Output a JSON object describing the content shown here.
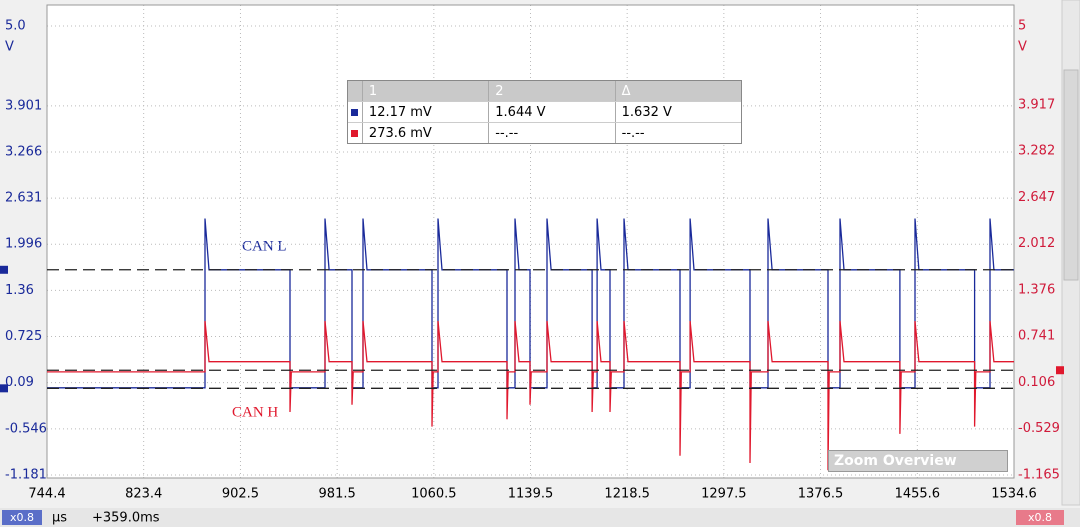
{
  "chart_data": {
    "type": "line",
    "xlim": [
      744.4,
      1534.6
    ],
    "xticks": [
      744.4,
      823.4,
      902.5,
      981.5,
      1060.5,
      1139.5,
      1218.5,
      1297.5,
      1376.5,
      1455.6,
      1534.6
    ],
    "ylim": [
      -1.181,
      5.0
    ],
    "yticks": [
      -1.181,
      -0.546,
      0.09,
      0.725,
      1.36,
      1.996,
      2.631,
      3.266,
      3.901,
      {
        "value": 5.0,
        "label": "5.0"
      }
    ],
    "y2lim": [
      -1.165,
      5
    ],
    "y2ticks": [
      -1.165,
      -0.529,
      0.106,
      0.741,
      1.376,
      2.012,
      2.647,
      3.282,
      3.917,
      5
    ],
    "ylabel": "V",
    "y2label": "V",
    "xlabel": "µs",
    "time_offset": "+359.0ms",
    "grid": true,
    "cursors": {
      "y": [
        0.01217,
        1.644
      ],
      "y2": [
        0.2736
      ]
    },
    "series": [
      {
        "name": "CAN L",
        "color": "#1a2a9a",
        "axis": "y",
        "x": [
          744.4,
          873.5,
          873.5,
          876.8,
          943.0,
          943.0,
          971.6,
          971.6,
          974.9,
          993.6,
          993.6,
          1002.6,
          1002.6,
          1005.9,
          1059.0,
          1059.0,
          1063.9,
          1063.9,
          1067.2,
          1120.3,
          1120.3,
          1126.8,
          1126.8,
          1130.1,
          1139.1,
          1139.1,
          1153.0,
          1153.0,
          1156.3,
          1189.8,
          1189.8,
          1193.9,
          1193.9,
          1197.1,
          1204.5,
          1204.5,
          1215.9,
          1215.9,
          1219.2,
          1261.7,
          1261.7,
          1269.9,
          1269.9,
          1273.1,
          1318.9,
          1318.9,
          1333.6,
          1333.6,
          1336.9,
          1382.6,
          1382.6,
          1392.4,
          1392.4,
          1395.7,
          1441.4,
          1441.4,
          1453.7,
          1453.7,
          1456.9,
          1502.4,
          1502.4,
          1515.0,
          1515.0,
          1518.2,
          1534.6
        ],
        "values": [
          0.02,
          0.02,
          2.35,
          1.644,
          1.644,
          0.02,
          0.02,
          2.35,
          1.644,
          1.644,
          0.02,
          0.02,
          2.35,
          1.644,
          1.644,
          0.02,
          0.02,
          2.35,
          1.644,
          1.644,
          0.02,
          0.02,
          2.35,
          1.644,
          1.644,
          0.02,
          0.02,
          2.35,
          1.644,
          1.644,
          0.02,
          0.02,
          2.35,
          1.644,
          1.644,
          0.02,
          0.02,
          2.35,
          1.644,
          1.644,
          0.02,
          0.02,
          2.35,
          1.644,
          1.644,
          0.02,
          0.02,
          2.35,
          1.644,
          1.644,
          0.02,
          0.02,
          2.35,
          1.644,
          1.644,
          0.02,
          0.02,
          2.35,
          1.644,
          1.644,
          0.02,
          0.02,
          2.35,
          1.644,
          1.644
        ]
      },
      {
        "name": "CAN H",
        "color": "#e0182d",
        "axis": "y2",
        "x": [
          744.4,
          873.5,
          873.5,
          876.8,
          943.0,
          943.0,
          944.0,
          971.6,
          971.6,
          974.9,
          993.6,
          993.6,
          994.6,
          1002.6,
          1002.6,
          1005.9,
          1059.0,
          1059.0,
          1060.0,
          1063.9,
          1063.9,
          1067.2,
          1120.3,
          1120.3,
          1121.3,
          1126.8,
          1126.8,
          1130.1,
          1139.1,
          1139.1,
          1140.1,
          1153.0,
          1153.0,
          1156.3,
          1189.8,
          1189.8,
          1190.8,
          1193.9,
          1193.9,
          1197.1,
          1204.5,
          1204.5,
          1205.5,
          1215.9,
          1215.9,
          1219.2,
          1261.7,
          1261.7,
          1262.7,
          1269.9,
          1269.9,
          1273.1,
          1318.9,
          1318.9,
          1319.9,
          1333.6,
          1333.6,
          1336.9,
          1382.6,
          1382.6,
          1383.6,
          1392.4,
          1392.4,
          1395.7,
          1441.4,
          1441.4,
          1442.4,
          1453.7,
          1453.7,
          1456.9,
          1502.4,
          1502.4,
          1503.4,
          1515.0,
          1515.0,
          1518.2,
          1534.6
        ],
        "values": [
          0.25,
          0.25,
          0.95,
          0.39,
          0.39,
          -0.3,
          0.25,
          0.25,
          0.95,
          0.39,
          0.39,
          -0.2,
          0.25,
          0.25,
          0.95,
          0.39,
          0.39,
          -0.5,
          0.25,
          0.25,
          0.95,
          0.39,
          0.39,
          -0.4,
          0.25,
          0.25,
          0.95,
          0.39,
          0.39,
          -0.2,
          0.25,
          0.25,
          0.95,
          0.39,
          0.39,
          -0.3,
          0.25,
          0.25,
          0.95,
          0.39,
          0.39,
          -0.3,
          0.25,
          0.25,
          0.95,
          0.39,
          0.39,
          -0.9,
          0.25,
          0.25,
          0.95,
          0.39,
          0.39,
          -1.0,
          0.25,
          0.25,
          0.95,
          0.39,
          0.39,
          -1.1,
          0.25,
          0.25,
          0.95,
          0.39,
          0.39,
          -0.6,
          0.25,
          0.25,
          0.95,
          0.39,
          0.39,
          -0.5,
          0.25,
          0.25,
          0.95,
          0.39,
          0.39
        ]
      }
    ]
  },
  "cursor_table": {
    "header": [
      "1",
      "2",
      "Δ"
    ],
    "rows": [
      [
        "12.17 mV",
        "1.644 V",
        "1.632 V"
      ],
      [
        "273.6 mV",
        "--.--",
        "--.--"
      ]
    ]
  },
  "zoom_overview": {
    "title": "Zoom Overview"
  },
  "status_bar": {
    "left_zoom": "x0.8",
    "right_zoom": "x0.8"
  }
}
